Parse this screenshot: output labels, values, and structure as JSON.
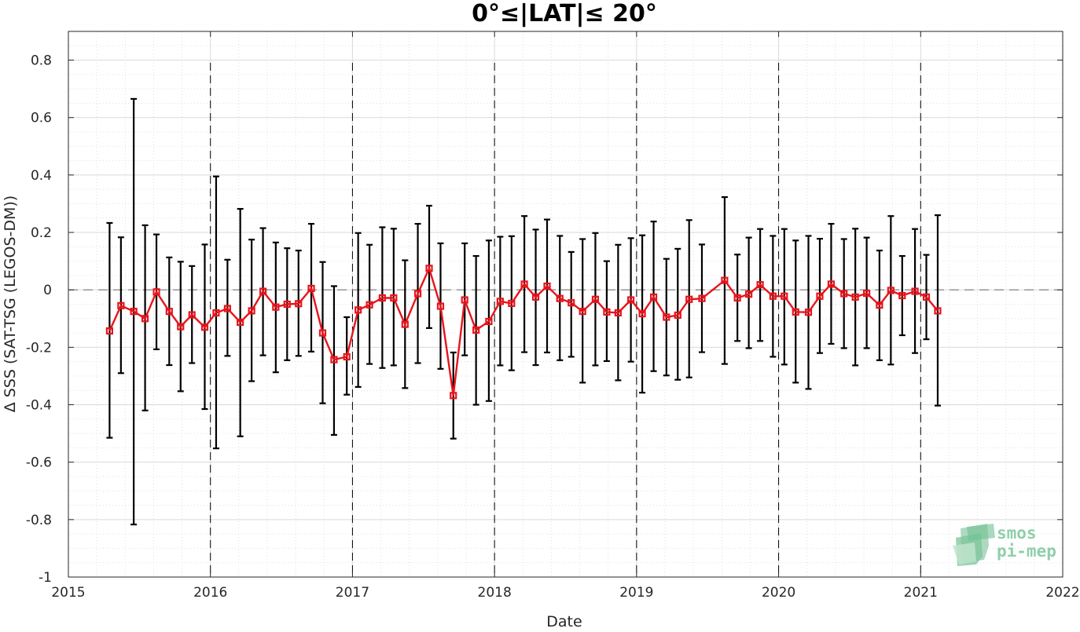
{
  "chart_data": {
    "type": "line",
    "title": "0°≤|LAT|≤ 20°",
    "xlabel": "Date",
    "ylabel": "Δ SSS (SAT-TSG (LEGOS-DM))",
    "xlim": [
      2015,
      2022
    ],
    "ylim": [
      -1,
      0.9
    ],
    "x_ticks": [
      "2015",
      "2016",
      "2017",
      "2018",
      "2019",
      "2020",
      "2021",
      "2022"
    ],
    "y_ticks": [
      "-1",
      "-0.8",
      "-0.6",
      "-0.4",
      "-0.2",
      "0",
      "0.2",
      "0.4",
      "0.6",
      "0.8"
    ],
    "grid": true,
    "year_boundaries": [
      2016,
      2017,
      2018,
      2019,
      2020,
      2021
    ],
    "zero_line": 0,
    "colors": {
      "series": "#e8141c",
      "error_bars": "#000000",
      "year_lines": "#000000",
      "zero_line": "#8c8c8c",
      "grid": "#d9d9d9"
    },
    "series": [
      {
        "x": [
          2015.29,
          2015.37,
          2015.46,
          2015.54,
          2015.62,
          2015.71,
          2015.79,
          2015.87,
          2015.96,
          2016.04,
          2016.12,
          2016.21,
          2016.29,
          2016.37,
          2016.46,
          2016.54,
          2016.62,
          2016.71,
          2016.79,
          2016.87,
          2016.96,
          2017.04,
          2017.12,
          2017.21,
          2017.29,
          2017.37,
          2017.46,
          2017.54,
          2017.62,
          2017.71,
          2017.79,
          2017.87,
          2017.96,
          2018.04,
          2018.12,
          2018.21,
          2018.29,
          2018.37,
          2018.46,
          2018.54,
          2018.62,
          2018.71,
          2018.79,
          2018.87,
          2018.96,
          2019.04,
          2019.12,
          2019.21,
          2019.29,
          2019.37,
          2019.46,
          2019.62,
          2019.71,
          2019.79,
          2019.87,
          2019.96,
          2020.04,
          2020.12,
          2020.21,
          2020.29,
          2020.37,
          2020.46,
          2020.54,
          2020.62,
          2020.71,
          2020.79,
          2020.87,
          2020.96,
          2021.04,
          2021.12
        ],
        "y": [
          -0.143,
          -0.055,
          -0.075,
          -0.1,
          -0.007,
          -0.075,
          -0.128,
          -0.087,
          -0.13,
          -0.08,
          -0.065,
          -0.113,
          -0.073,
          -0.005,
          -0.06,
          -0.05,
          -0.048,
          0.005,
          -0.15,
          -0.243,
          -0.233,
          -0.07,
          -0.052,
          -0.028,
          -0.028,
          -0.12,
          -0.013,
          0.075,
          -0.057,
          -0.368,
          -0.035,
          -0.14,
          -0.11,
          -0.04,
          -0.047,
          0.02,
          -0.025,
          0.013,
          -0.03,
          -0.045,
          -0.075,
          -0.033,
          -0.077,
          -0.08,
          -0.035,
          -0.083,
          -0.025,
          -0.095,
          -0.088,
          -0.033,
          -0.03,
          0.033,
          -0.028,
          -0.015,
          0.018,
          -0.022,
          -0.022,
          -0.077,
          -0.078,
          -0.022,
          0.02,
          -0.013,
          -0.025,
          -0.012,
          -0.053,
          -0.002,
          -0.02,
          -0.005,
          -0.025,
          -0.073
        ],
        "err_low": [
          -0.515,
          -0.29,
          -0.817,
          -0.42,
          -0.207,
          -0.262,
          -0.353,
          -0.255,
          -0.415,
          -0.552,
          -0.23,
          -0.51,
          -0.318,
          -0.228,
          -0.287,
          -0.245,
          -0.23,
          -0.215,
          -0.395,
          -0.505,
          -0.365,
          -0.338,
          -0.258,
          -0.272,
          -0.263,
          -0.342,
          -0.255,
          -0.133,
          -0.275,
          -0.518,
          -0.228,
          -0.4,
          -0.387,
          -0.263,
          -0.28,
          -0.217,
          -0.262,
          -0.218,
          -0.245,
          -0.233,
          -0.323,
          -0.263,
          -0.248,
          -0.315,
          -0.25,
          -0.358,
          -0.283,
          -0.298,
          -0.313,
          -0.305,
          -0.217,
          -0.258,
          -0.178,
          -0.203,
          -0.178,
          -0.233,
          -0.26,
          -0.323,
          -0.345,
          -0.22,
          -0.188,
          -0.203,
          -0.263,
          -0.203,
          -0.245,
          -0.26,
          -0.158,
          -0.22,
          -0.172,
          -0.403
        ],
        "err_high": [
          0.233,
          0.183,
          0.665,
          0.225,
          0.193,
          0.113,
          0.098,
          0.083,
          0.158,
          0.395,
          0.105,
          0.282,
          0.175,
          0.215,
          0.165,
          0.145,
          0.137,
          0.23,
          0.097,
          0.013,
          -0.095,
          0.198,
          0.157,
          0.218,
          0.213,
          0.103,
          0.23,
          0.293,
          0.162,
          -0.218,
          0.162,
          0.118,
          0.172,
          0.185,
          0.187,
          0.257,
          0.21,
          0.245,
          0.188,
          0.132,
          0.177,
          0.198,
          0.1,
          0.157,
          0.18,
          0.19,
          0.238,
          0.108,
          0.143,
          0.243,
          0.158,
          0.323,
          0.123,
          0.182,
          0.212,
          0.188,
          0.212,
          0.172,
          0.188,
          0.178,
          0.23,
          0.177,
          0.213,
          0.182,
          0.137,
          0.257,
          0.118,
          0.212,
          0.122,
          0.26
        ]
      }
    ]
  },
  "logo": {
    "line1": "smos",
    "line2": "pi-mep"
  }
}
